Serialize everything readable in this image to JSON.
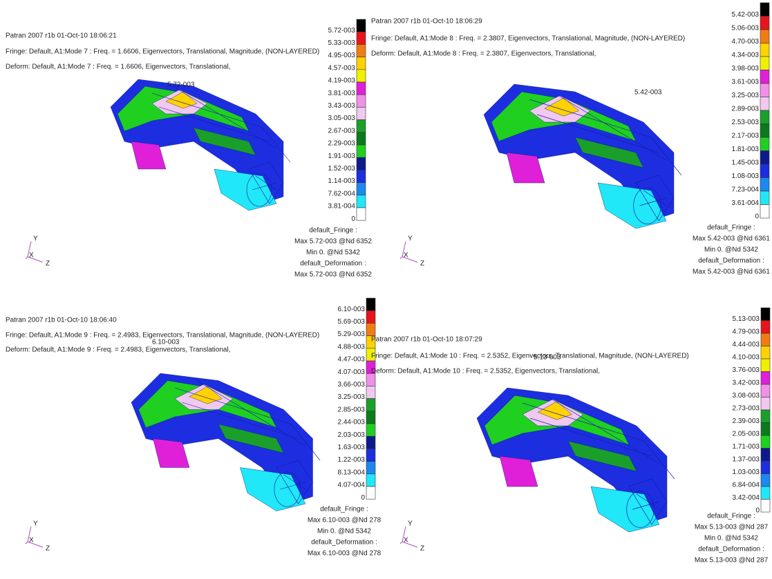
{
  "spectrum_colors": [
    "#000000",
    "#e8141c",
    "#f07c14",
    "#ffd200",
    "#f0f000",
    "#e020d8",
    "#f090e8",
    "#f0c8f0",
    "#1aa02a",
    "#0c7a1c",
    "#20d020",
    "#0c1a8c",
    "#1c2ee0",
    "#1c88f0",
    "#20e8f8",
    "#ffffff"
  ],
  "panels": [
    {
      "header": [
        "Patran 2007 r1b 01-Oct-10 18:06:21",
        "Fringe: Default, A1:Mode 7 : Freq. = 1.6606, Eigenvectors, Translational, Magnitude, (NON-LAYERED)",
        "Deform: Default, A1:Mode 7 : Freq. = 1.6606, Eigenvectors, Translational,"
      ],
      "peak_label": "5.72-003",
      "legend": [
        "5.72-003",
        "5.33-003",
        "4.95-003",
        "4.57-003",
        "4.19-003",
        "3.81-003",
        "3.43-003",
        "3.05-003",
        "2.67-003",
        "2.29-003",
        "1.91-003",
        "1.52-003",
        "1.14-003",
        "7.62-004",
        "3.81-004",
        "0"
      ],
      "footer": [
        "default_Fringe :",
        "Max 5.72-003 @Nd 6352",
        "Min 0. @Nd 5342",
        "default_Deformation :",
        "Max 5.72-003 @Nd 6352"
      ],
      "axes": [
        "Y",
        "X",
        "Z"
      ]
    },
    {
      "header": [
        "Patran 2007 r1b 01-Oct-10 18:06:29",
        "Fringe: Default, A1:Mode 8 : Freq. = 2.3807, Eigenvectors, Translational, Magnitude, (NON-LAYERED)",
        "Deform: Default, A1:Mode 8 : Freq. = 2.3807, Eigenvectors, Translational,"
      ],
      "peak_label": "5.42-003",
      "legend": [
        "5.42-003",
        "5.06-003",
        "4.70-003",
        "4.34-003",
        "3.98-003",
        "3.61-003",
        "3.25-003",
        "2.89-003",
        "2.53-003",
        "2.17-003",
        "1.81-003",
        "1.45-003",
        "1.08-003",
        "7.23-004",
        "3.61-004",
        "0"
      ],
      "footer": [
        "default_Fringe :",
        "Max 5.42-003 @Nd 6361",
        "Min 0. @Nd 5342",
        "default_Deformation :",
        "Max 5.42-003 @Nd 6361"
      ],
      "axes": [
        "Y",
        "X",
        "Z"
      ]
    },
    {
      "header": [
        "Patran 2007 r1b 01-Oct-10 18:06:40",
        "Fringe: Default, A1:Mode 9 : Freq. = 2.4983, Eigenvectors, Translational, Magnitude, (NON-LAYERED)",
        "Deform: Default, A1:Mode 9 : Freq. = 2.4983, Eigenvectors, Translational,"
      ],
      "peak_label": "6.10-003",
      "legend": [
        "6.10-003",
        "5.69-003",
        "5.29-003",
        "4.88-003",
        "4.47-003",
        "4.07-003",
        "3.66-003",
        "3.25-003",
        "2.85-003",
        "2.44-003",
        "2.03-003",
        "1.63-003",
        "1.22-003",
        "8.13-004",
        "4.07-004",
        "0"
      ],
      "footer": [
        "default_Fringe :",
        "Max 6.10-003 @Nd 278",
        "Min 0. @Nd 5342",
        "default_Deformation :",
        "Max 6.10-003 @Nd 278"
      ],
      "axes": [
        "Y",
        "X",
        "Z"
      ]
    },
    {
      "header": [
        "Patran 2007 r1b 01-Oct-10 18:07:29",
        "Fringe: Default, A1:Mode 10 : Freq. = 2.5352, Eigenvectors, Translational, Magnitude, (NON-LAYERED)",
        "Deform: Default, A1:Mode 10 : Freq. = 2.5352, Eigenvectors, Translational,"
      ],
      "peak_label": "5.13-003",
      "legend": [
        "5.13-003",
        "4.79-003",
        "4.44-003",
        "4.10-003",
        "3.76-003",
        "3.42-003",
        "3.08-003",
        "2.73-003",
        "2.39-003",
        "2.05-003",
        "1.71-003",
        "1.37-003",
        "1.03-003",
        "6.84-004",
        "3.42-004",
        "0"
      ],
      "footer": [
        "default_Fringe :",
        "Max 5.13-003 @Nd 287",
        "Min 0. @Nd 5342",
        "default_Deformation :",
        "Max 5.13-003 @Nd 287"
      ],
      "axes": [
        "Y",
        "X",
        "Z"
      ]
    }
  ]
}
